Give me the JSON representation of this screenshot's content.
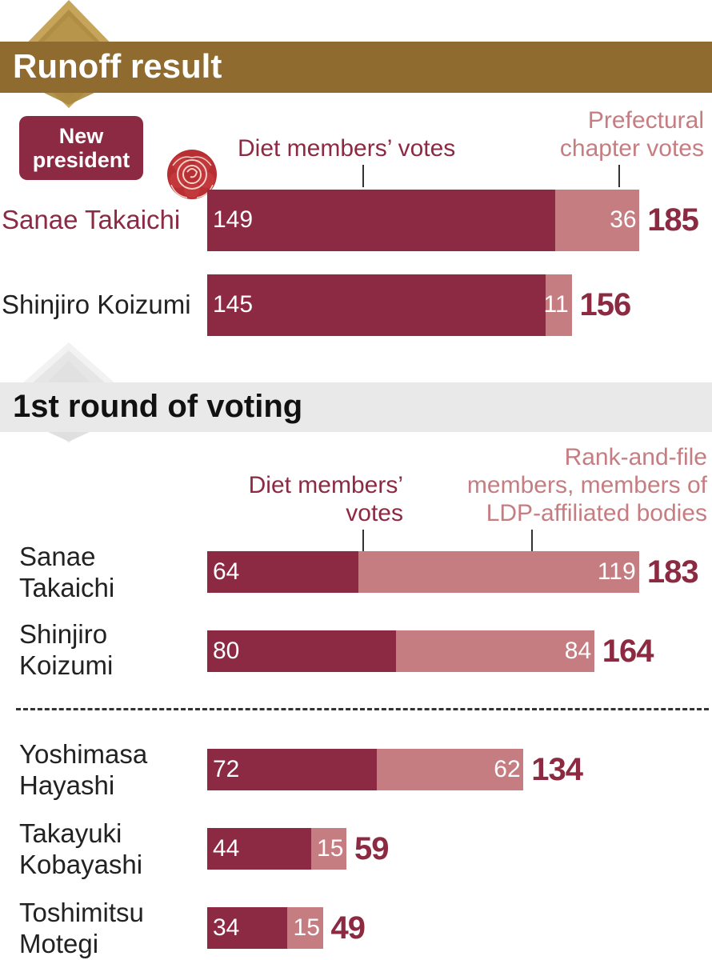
{
  "colors": {
    "diet": "#8d2a43",
    "other": "#c57d82",
    "runoff_header": "#8f6b30",
    "round1_header": "#e9e9e9",
    "total": "#8b2a41"
  },
  "runoff": {
    "title": "Runoff result",
    "badge_line1": "New",
    "badge_line2": "president",
    "legend_diet": "Diet members’ votes",
    "legend_pref_line1": "Prefectural",
    "legend_pref_line2": "chapter votes"
  },
  "round1": {
    "title": "1st round of voting",
    "legend_diet_line1": "Diet members’",
    "legend_diet_line2": "votes",
    "legend_rank_line1": "Rank-and-file",
    "legend_rank_line2": "members, members of",
    "legend_rank_line3": "LDP-affiliated bodies"
  },
  "chart_data": [
    {
      "type": "bar",
      "title": "Runoff result",
      "orientation": "horizontal",
      "stacked": true,
      "categories": [
        "Sanae Takaichi",
        "Shinjiro Koizumi"
      ],
      "series": [
        {
          "name": "Diet members’ votes",
          "values": [
            149,
            145
          ]
        },
        {
          "name": "Prefectural chapter votes",
          "values": [
            36,
            11
          ]
        }
      ],
      "totals": [
        185,
        156
      ],
      "winner": "Sanae Takaichi"
    },
    {
      "type": "bar",
      "title": "1st round of voting",
      "orientation": "horizontal",
      "stacked": true,
      "categories": [
        "Sanae Takaichi",
        "Shinjiro Koizumi",
        "Yoshimasa Hayashi",
        "Takayuki Kobayashi",
        "Toshimitsu Motegi"
      ],
      "series": [
        {
          "name": "Diet members’ votes",
          "values": [
            64,
            80,
            72,
            44,
            34
          ]
        },
        {
          "name": "Rank-and-file members, members of LDP-affiliated bodies",
          "values": [
            119,
            84,
            62,
            15,
            15
          ]
        }
      ],
      "totals": [
        183,
        164,
        134,
        59,
        49
      ]
    }
  ],
  "runoff_rows": [
    {
      "name": "Sanae Takaichi",
      "diet": "149",
      "other": "36",
      "total": "185"
    },
    {
      "name": "Shinjiro Koizumi",
      "diet": "145",
      "other": "11",
      "total": "156"
    }
  ],
  "round1_rows": [
    {
      "name_line1": "Sanae",
      "name_line2": "Takaichi",
      "diet": "64",
      "other": "119",
      "total": "183"
    },
    {
      "name_line1": "Shinjiro",
      "name_line2": "Koizumi",
      "diet": "80",
      "other": "84",
      "total": "164"
    },
    {
      "name_line1": "Yoshimasa",
      "name_line2": "Hayashi",
      "diet": "72",
      "other": "62",
      "total": "134"
    },
    {
      "name_line1": "Takayuki",
      "name_line2": "Kobayashi",
      "diet": "44",
      "other": "15",
      "total": "59"
    },
    {
      "name_line1": "Toshimitsu",
      "name_line2": "Motegi",
      "diet": "34",
      "other": "15",
      "total": "49"
    }
  ]
}
